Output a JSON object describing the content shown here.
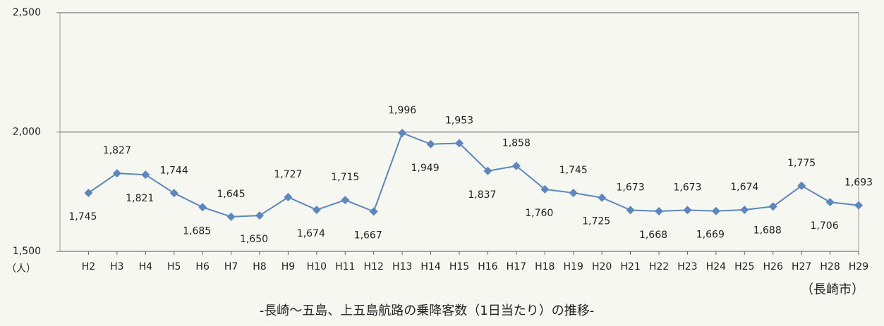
{
  "chart_data": {
    "type": "line",
    "categories": [
      "H2",
      "H3",
      "H4",
      "H5",
      "H6",
      "H7",
      "H8",
      "H9",
      "H10",
      "H11",
      "H12",
      "H13",
      "H14",
      "H15",
      "H16",
      "H17",
      "H18",
      "H19",
      "H20",
      "H21",
      "H22",
      "H23",
      "H24",
      "H25",
      "H26",
      "H27",
      "H28",
      "H29"
    ],
    "series": [
      {
        "name": "乗降客数",
        "color": "#5b86bf",
        "values": [
          1745,
          1827,
          1821,
          1744,
          1685,
          1645,
          1650,
          1727,
          1674,
          1715,
          1667,
          1996,
          1949,
          1953,
          1837,
          1858,
          1760,
          1745,
          1725,
          1673,
          1668,
          1673,
          1669,
          1674,
          1688,
          1775,
          1706,
          1693
        ],
        "value_labels": [
          "1,745",
          "1,827",
          "1,821",
          "1,744",
          "1,685",
          "1,645",
          "1,650",
          "1,727",
          "1,674",
          "1,715",
          "1,667",
          "1,996",
          "1,949",
          "1,953",
          "1,837",
          "1,858",
          "1,760",
          "1,745",
          "1,725",
          "1,673",
          "1,668",
          "1,673",
          "1,669",
          "1,674",
          "1,688",
          "1,775",
          "1,706",
          "1,693"
        ]
      }
    ],
    "ylim": [
      1500,
      2500
    ],
    "yticks": [
      {
        "value": 1500,
        "label": "1,500"
      },
      {
        "value": 2000,
        "label": "2,000"
      },
      {
        "value": 2500,
        "label": "2,500"
      }
    ],
    "y_unit": "（人）",
    "source": "（長崎市）",
    "caption": "-長崎～五島、上五島航路の乗降客数（1日当たり）の推移-",
    "grid": true
  }
}
